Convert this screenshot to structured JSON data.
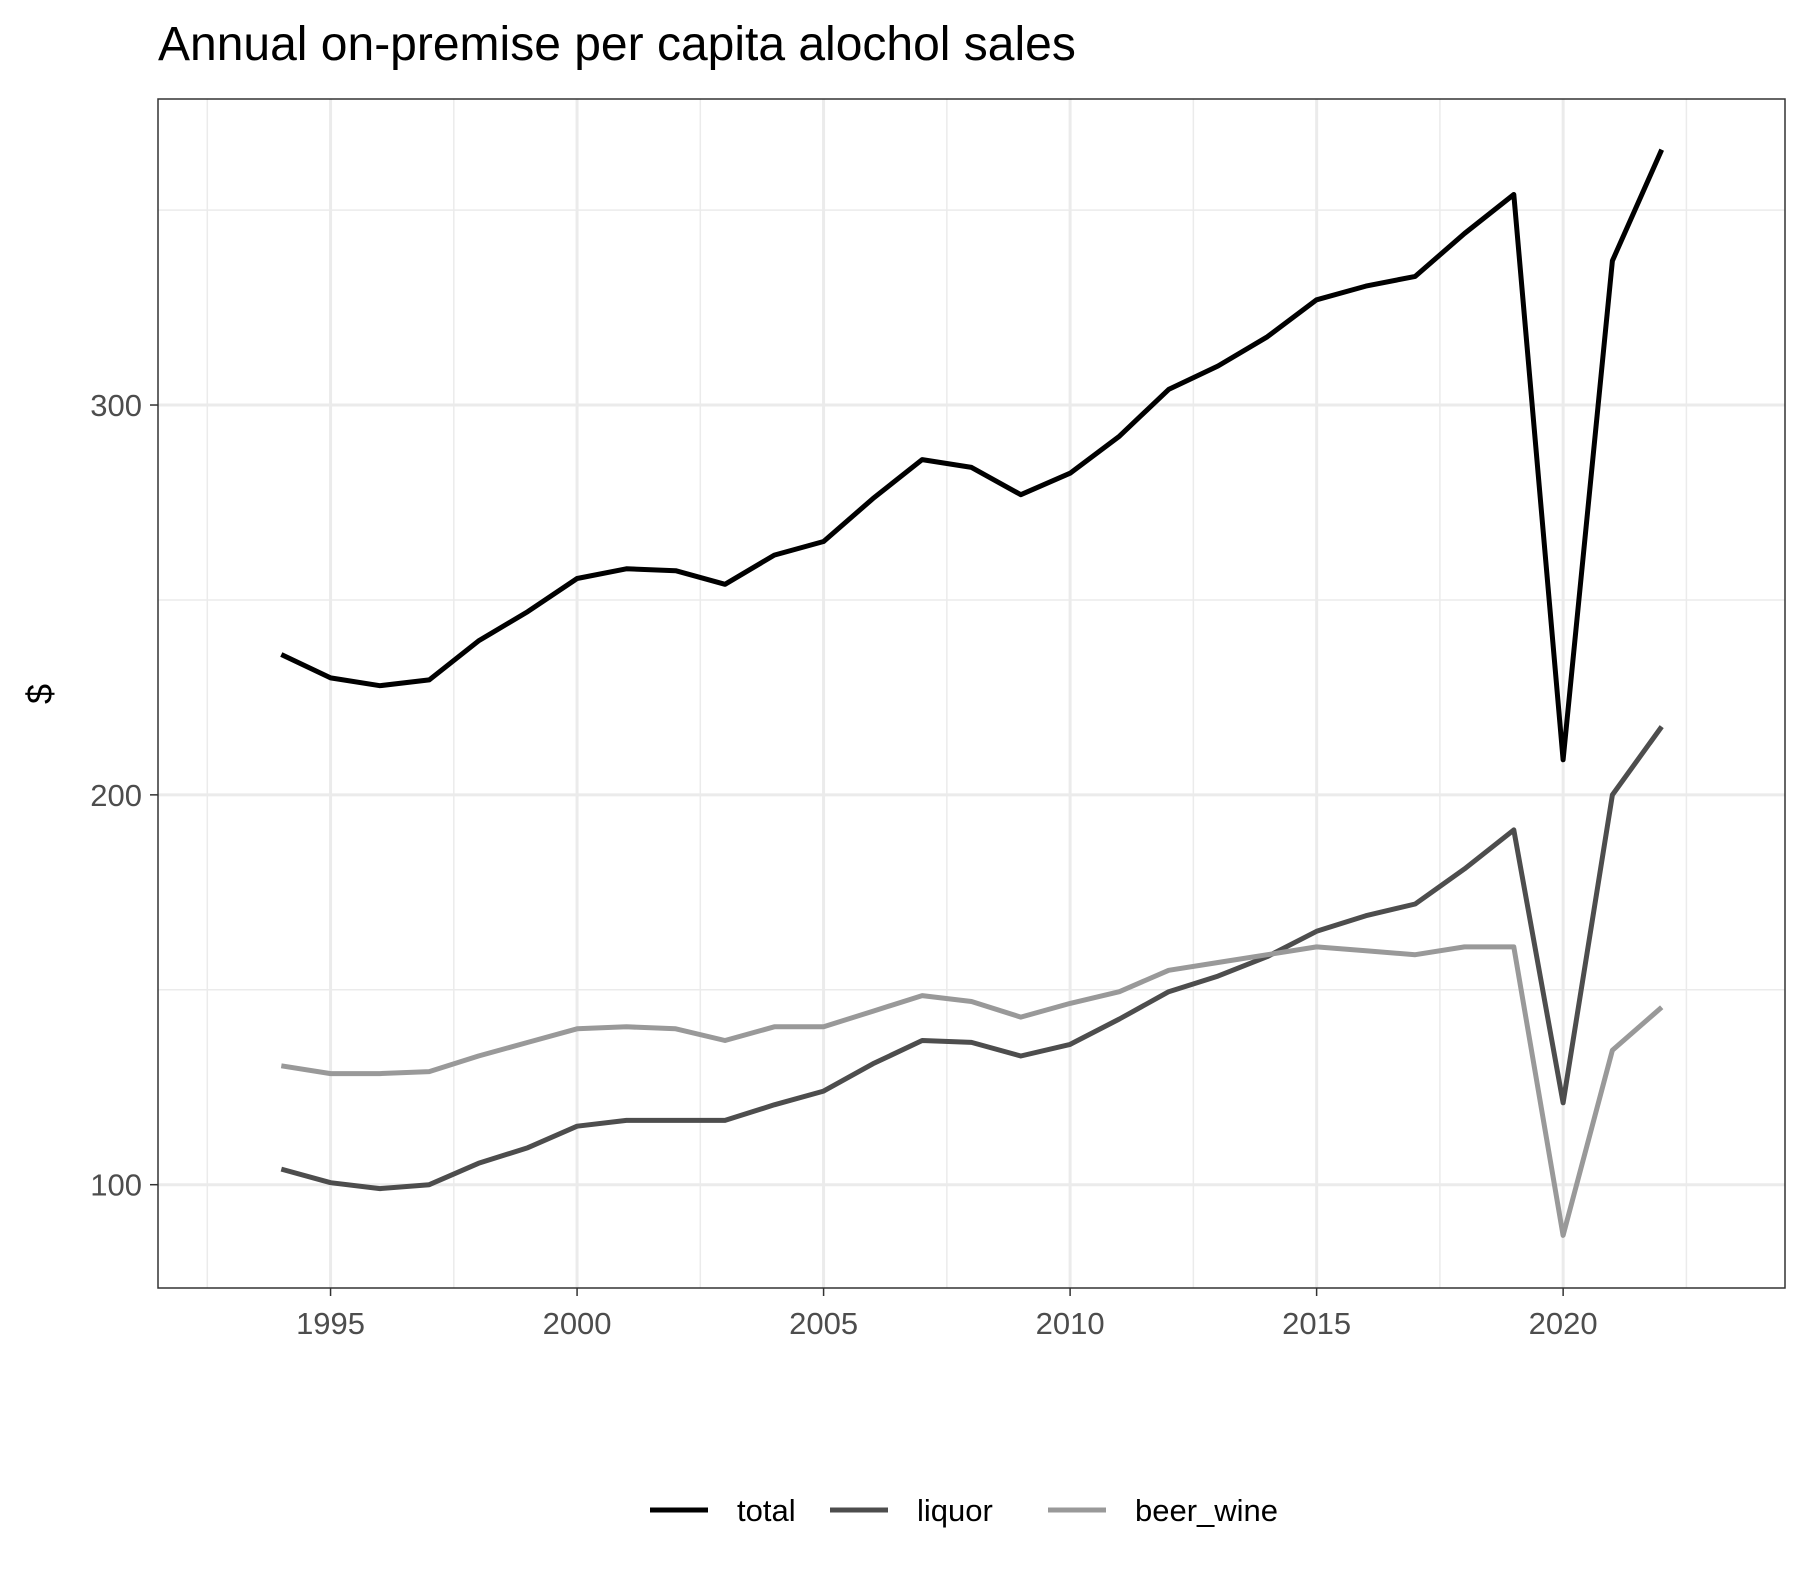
{
  "chart_data": {
    "type": "line",
    "title": "Annual on-premise per capita alochol sales",
    "xlabel": "",
    "ylabel": "$",
    "xlim": [
      1991.5,
      2024.5
    ],
    "ylim": [
      73.5,
      378.5
    ],
    "x_ticks": [
      1995,
      2000,
      2005,
      2010,
      2015,
      2020
    ],
    "x_tick_labels": [
      "1995",
      "2000",
      "2005",
      "2010",
      "2015",
      "2020"
    ],
    "y_ticks": [
      100,
      200,
      300
    ],
    "y_tick_labels": [
      "100",
      "200",
      "300"
    ],
    "grid": true,
    "legend_position": "bottom",
    "x": [
      1994,
      1995,
      1996,
      1997,
      1998,
      1999,
      2000,
      2001,
      2002,
      2003,
      2004,
      2005,
      2006,
      2007,
      2008,
      2009,
      2010,
      2011,
      2012,
      2013,
      2014,
      2015,
      2016,
      2017,
      2018,
      2019,
      2020,
      2021,
      2022
    ],
    "series": [
      {
        "name": "total",
        "color": "#000000",
        "values": [
          236,
          230,
          228,
          229.5,
          239.5,
          247,
          255.5,
          258,
          257.5,
          254,
          261.5,
          265,
          276,
          286,
          284,
          277,
          282.5,
          292,
          304,
          310,
          317.5,
          327,
          330.5,
          333,
          344,
          354,
          209,
          337,
          365.5
        ]
      },
      {
        "name": "liquor",
        "color": "#4d4d4d",
        "values": [
          104,
          100.5,
          99,
          100,
          105.5,
          109.5,
          115,
          116.5,
          116.5,
          116.5,
          120.5,
          124,
          131,
          137,
          136.5,
          133,
          136,
          142.5,
          149.5,
          153.5,
          158.5,
          165,
          169,
          172,
          181,
          191,
          121,
          200,
          217.5
        ]
      },
      {
        "name": "beer_wine",
        "color": "#999999",
        "values": [
          130.5,
          128.5,
          128.5,
          129,
          133,
          136.5,
          140,
          140.5,
          140,
          137,
          140.5,
          140.5,
          144.5,
          148.5,
          147,
          143,
          146.5,
          149.5,
          155,
          157,
          159,
          161,
          160,
          159,
          161,
          161,
          87,
          134.5,
          145.5
        ]
      }
    ]
  }
}
